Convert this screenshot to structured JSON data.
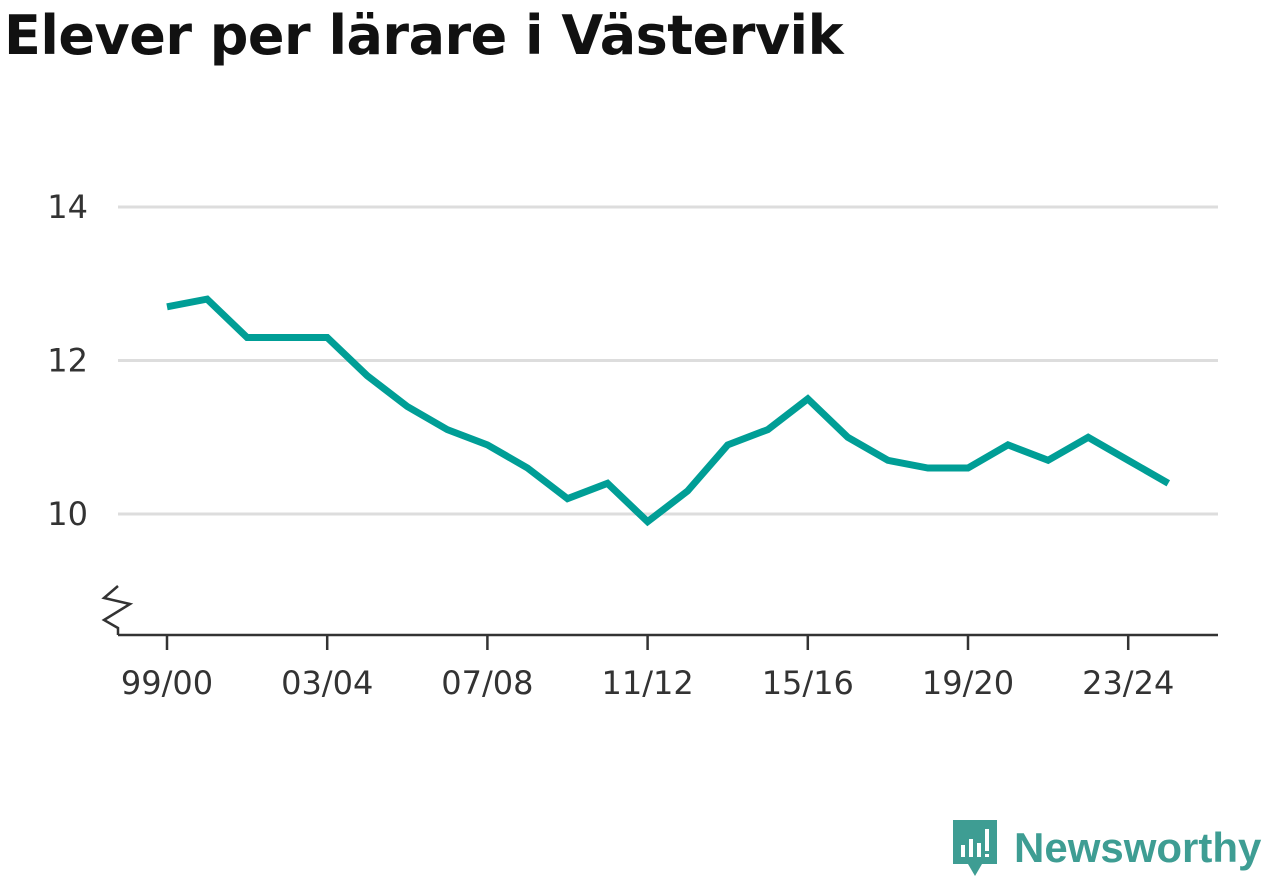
{
  "chart_data": {
    "type": "line",
    "title": "Elever per lärare i Västervik",
    "x": [
      "99/00",
      "00/01",
      "01/02",
      "02/03",
      "03/04",
      "04/05",
      "05/06",
      "06/07",
      "07/08",
      "08/09",
      "09/10",
      "10/11",
      "11/12",
      "12/13",
      "13/14",
      "14/15",
      "15/16",
      "16/17",
      "17/18",
      "18/19",
      "19/20",
      "20/21",
      "21/22",
      "22/23",
      "23/24",
      "24/25"
    ],
    "x_tick_labels": [
      "99/00",
      "03/04",
      "07/08",
      "11/12",
      "15/16",
      "19/20",
      "23/24"
    ],
    "series": [
      {
        "values": [
          12.7,
          12.8,
          12.3,
          12.3,
          12.3,
          11.8,
          11.4,
          11.1,
          10.9,
          10.6,
          10.2,
          10.4,
          9.9,
          10.3,
          10.9,
          11.1,
          11.5,
          11.0,
          10.7,
          10.6,
          10.6,
          10.9,
          10.7,
          11.0,
          10.7,
          10.4
        ]
      }
    ],
    "y_ticks": [
      10,
      12,
      14
    ],
    "ylim": [
      8.6,
      14
    ],
    "y_axis_break": true,
    "grid": "horizontal",
    "legend": "none",
    "colors": {
      "line": "#009e96",
      "grid": "#dddddd",
      "axis": "#333333"
    }
  },
  "brand": {
    "name": "Newsworthy",
    "icon": "newsworthy-logo-icon",
    "color": "#3e9d93"
  }
}
